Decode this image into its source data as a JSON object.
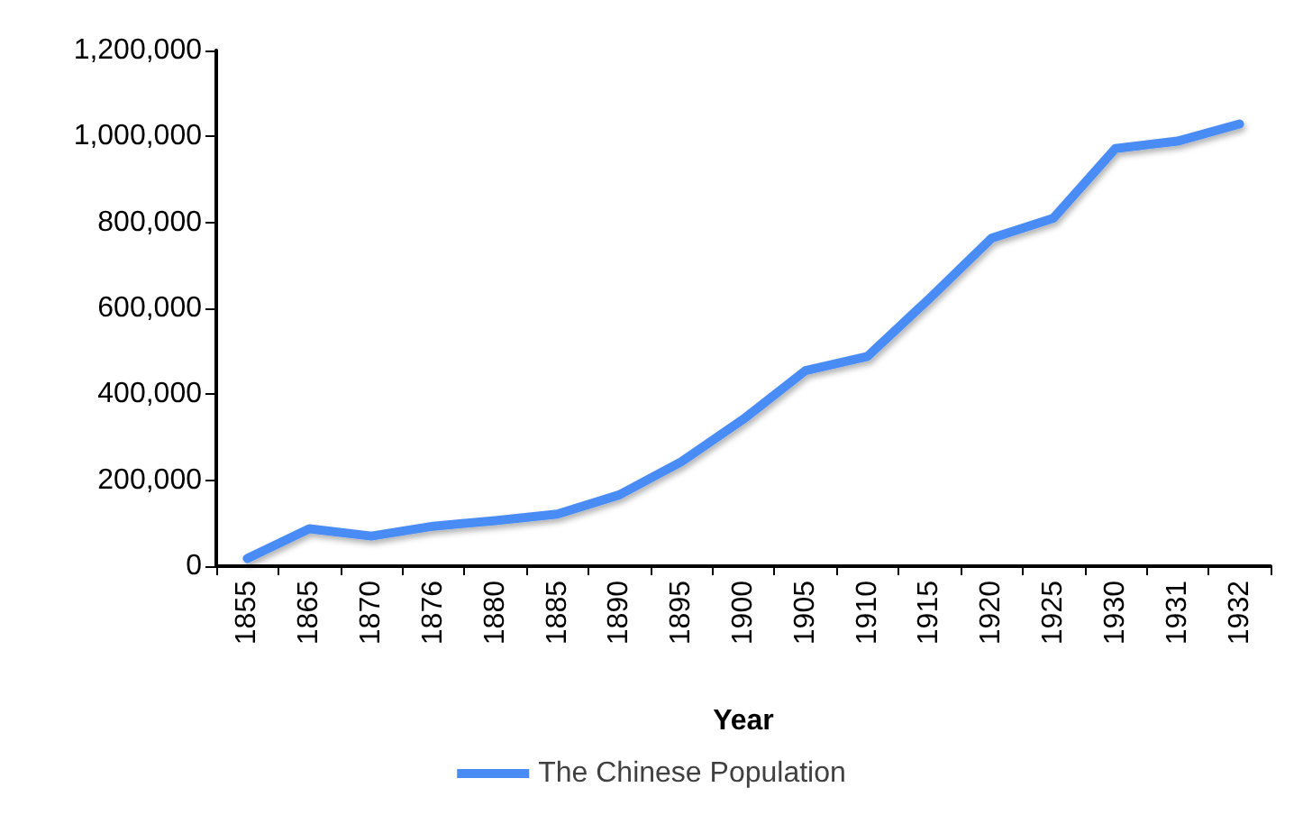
{
  "chart_data": {
    "type": "line",
    "xlabel": "Year",
    "categories": [
      "1855",
      "1865",
      "1870",
      "1876",
      "1880",
      "1885",
      "1890",
      "1895",
      "1900",
      "1905",
      "1910",
      "1915",
      "1920",
      "1925",
      "1930",
      "1931",
      "1932"
    ],
    "series": [
      {
        "name": "The Chinese Population",
        "color": "#4a8cf5",
        "values": [
          18000,
          87000,
          70000,
          93000,
          106000,
          121000,
          166000,
          243000,
          342000,
          455000,
          488000,
          623000,
          763000,
          810000,
          972000,
          989000,
          1029000
        ]
      }
    ],
    "ylim": [
      0,
      1200000
    ],
    "yticks": [
      0,
      {
        "value": 200000,
        "label": "200,000"
      },
      {
        "value": 400000,
        "label": "400,000"
      },
      {
        "value": 600000,
        "label": "600,000"
      },
      {
        "value": 800000,
        "label": "800,000"
      },
      {
        "value": 1000000,
        "label": "1,000,000"
      },
      {
        "value": 1200000,
        "label": "1,200,000"
      }
    ],
    "grid": false,
    "legend": "bottom",
    "marker": "none",
    "line_style": "solid"
  }
}
